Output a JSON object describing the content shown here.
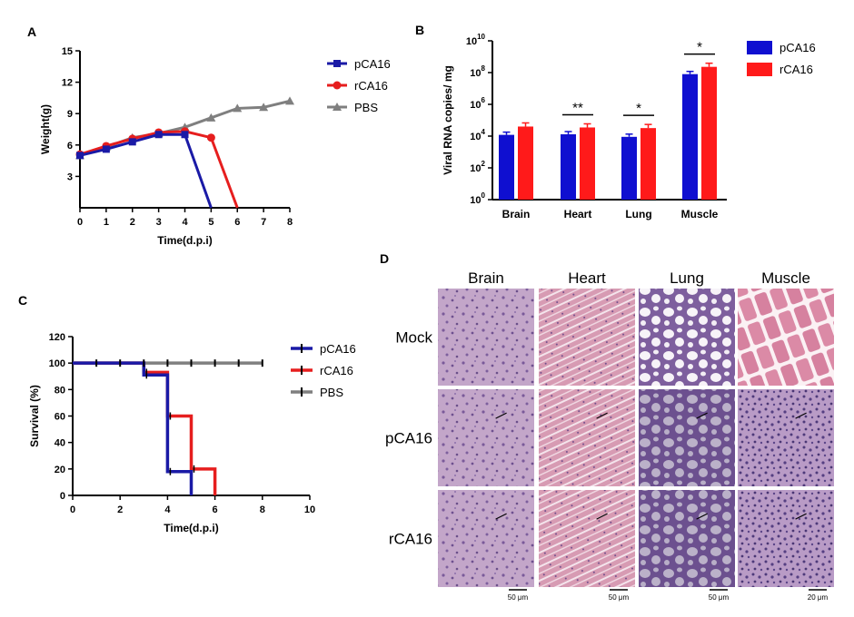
{
  "figure": {
    "panel_labels": [
      "A",
      "B",
      "C",
      "D"
    ],
    "colors": {
      "pCA16": "#1a1aa6",
      "rCA16": "#e61e1e",
      "PBS": "#7f7f7f",
      "blueBar": "#0f0fd0",
      "redBar": "#ff1a1a"
    }
  },
  "chart_data": [
    {
      "id": "A",
      "type": "line",
      "xlabel": "Time(d.p.i)",
      "ylabel": "Weight(g)",
      "xlim": [
        0,
        8
      ],
      "ylim": [
        0,
        15
      ],
      "xticks": [
        "0",
        "1",
        "2",
        "3",
        "4",
        "5",
        "6",
        "7",
        "8"
      ],
      "yticks": [
        "3",
        "6",
        "9",
        "12",
        "15"
      ],
      "legend_position": "right",
      "series": [
        {
          "name": "pCA16",
          "color": "#1a1aa6",
          "marker": "square",
          "x": [
            0,
            1,
            2,
            3,
            4,
            5
          ],
          "y": [
            5.0,
            5.6,
            6.3,
            7.0,
            7.0,
            0
          ]
        },
        {
          "name": "rCA16",
          "color": "#e61e1e",
          "marker": "circle",
          "x": [
            0,
            1,
            2,
            3,
            4,
            5,
            6
          ],
          "y": [
            5.1,
            5.9,
            6.6,
            7.2,
            7.3,
            6.7,
            0
          ]
        },
        {
          "name": "PBS",
          "color": "#7f7f7f",
          "marker": "triangle",
          "x": [
            0,
            1,
            2,
            3,
            4,
            5,
            6,
            7,
            8
          ],
          "y": [
            5.0,
            5.8,
            6.7,
            7.1,
            7.7,
            8.6,
            9.5,
            9.6,
            10.2
          ]
        }
      ]
    },
    {
      "id": "B",
      "type": "bar",
      "ylabel": "Viral RNA copies/ mg",
      "yscale": "log",
      "ylim_exp": [
        0,
        10
      ],
      "ytick_exponents": [
        "0",
        "2",
        "4",
        "6",
        "8",
        "10"
      ],
      "ytick_base": "10",
      "categories": [
        "Brain",
        "Heart",
        "Lung",
        "Muscle"
      ],
      "series": [
        {
          "name": "pCA16",
          "color": "#0f0fd0",
          "values": [
            12000,
            13000,
            9000,
            80000000
          ]
        },
        {
          "name": "rCA16",
          "color": "#ff1a1a",
          "values": [
            40000,
            35000,
            32000,
            230000000
          ]
        }
      ],
      "significance": [
        {
          "category": "Heart",
          "label": "**"
        },
        {
          "category": "Lung",
          "label": "*"
        },
        {
          "category": "Muscle",
          "label": "*"
        }
      ],
      "legend_position": "right"
    },
    {
      "id": "C",
      "type": "line",
      "subtype": "step",
      "xlabel": "Time(d.p.i)",
      "ylabel": "Survival (%)",
      "xlim": [
        0,
        10
      ],
      "ylim": [
        0,
        120
      ],
      "xticks": [
        "0",
        "2",
        "4",
        "6",
        "8",
        "10"
      ],
      "yticks": [
        "0",
        "20",
        "40",
        "60",
        "80",
        "100",
        "120"
      ],
      "legend_position": "right",
      "series": [
        {
          "name": "pCA16",
          "color": "#1a1aa6",
          "steps": [
            [
              0,
              100
            ],
            [
              3,
              100
            ],
            [
              3,
              91
            ],
            [
              4,
              91
            ],
            [
              4,
              18
            ],
            [
              5,
              18
            ],
            [
              5,
              0
            ]
          ]
        },
        {
          "name": "rCA16",
          "color": "#e61e1e",
          "steps": [
            [
              0,
              100
            ],
            [
              3,
              100
            ],
            [
              3,
              93
            ],
            [
              4,
              93
            ],
            [
              4,
              60
            ],
            [
              5,
              60
            ],
            [
              5,
              20
            ],
            [
              6,
              20
            ],
            [
              6,
              0
            ]
          ]
        },
        {
          "name": "PBS",
          "color": "#7f7f7f",
          "steps": [
            [
              0,
              100
            ],
            [
              8,
              100
            ]
          ]
        }
      ],
      "censor_x": [
        1,
        2,
        3,
        4,
        5,
        6,
        7,
        8
      ]
    },
    {
      "id": "D",
      "type": "image-grid",
      "columns": [
        "Brain",
        "Heart",
        "Lung",
        "Muscle"
      ],
      "rows": [
        "Mock",
        "pCA16",
        "rCA16"
      ],
      "scale_bars": [
        "50 μm",
        "50 μm",
        "50 μm",
        "20 μm"
      ]
    }
  ]
}
